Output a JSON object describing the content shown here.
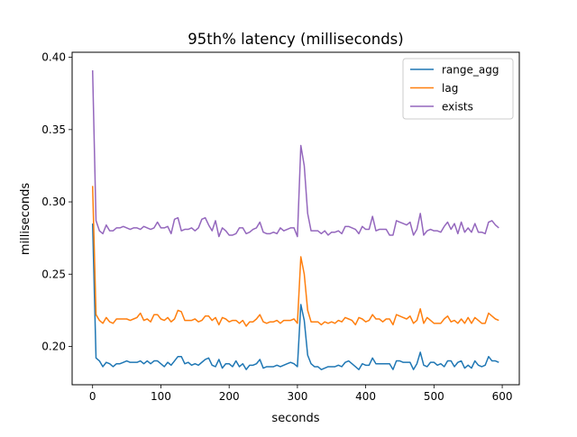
{
  "chart_data": {
    "type": "line",
    "title": "95th% latency (milliseconds)",
    "xlabel": "seconds",
    "ylabel": "milliseconds",
    "xlim": [
      -30,
      625
    ],
    "ylim": [
      0.1735,
      0.4035
    ],
    "xticks": [
      0,
      100,
      200,
      300,
      400,
      500,
      600
    ],
    "yticks": [
      0.2,
      0.25,
      0.3,
      0.35,
      0.4
    ],
    "legend_position": "upper right",
    "grid": false,
    "x": [
      0,
      5,
      10,
      15,
      20,
      25,
      30,
      35,
      40,
      45,
      50,
      55,
      60,
      65,
      70,
      75,
      80,
      85,
      90,
      95,
      100,
      105,
      110,
      115,
      120,
      125,
      130,
      135,
      140,
      145,
      150,
      155,
      160,
      165,
      170,
      175,
      180,
      185,
      190,
      195,
      200,
      205,
      210,
      215,
      220,
      225,
      230,
      235,
      240,
      245,
      250,
      255,
      260,
      265,
      270,
      275,
      280,
      285,
      290,
      295,
      300,
      305,
      310,
      315,
      320,
      325,
      330,
      335,
      340,
      345,
      350,
      355,
      360,
      365,
      370,
      375,
      380,
      385,
      390,
      395,
      400,
      405,
      410,
      415,
      420,
      425,
      430,
      435,
      440,
      445,
      450,
      455,
      460,
      465,
      470,
      475,
      480,
      485,
      490,
      495,
      500,
      505,
      510,
      515,
      520,
      525,
      530,
      535,
      540,
      545,
      550,
      555,
      560,
      565,
      570,
      575,
      580,
      585,
      590,
      595
    ],
    "series": [
      {
        "name": "range_agg",
        "color": "#1f77b4",
        "values": [
          0.285,
          0.192,
          0.19,
          0.186,
          0.189,
          0.188,
          0.186,
          0.188,
          0.188,
          0.189,
          0.19,
          0.189,
          0.189,
          0.189,
          0.19,
          0.188,
          0.19,
          0.188,
          0.19,
          0.19,
          0.188,
          0.186,
          0.189,
          0.187,
          0.19,
          0.193,
          0.193,
          0.188,
          0.189,
          0.187,
          0.188,
          0.187,
          0.189,
          0.191,
          0.192,
          0.187,
          0.186,
          0.191,
          0.185,
          0.188,
          0.188,
          0.186,
          0.19,
          0.186,
          0.188,
          0.184,
          0.187,
          0.187,
          0.188,
          0.191,
          0.185,
          0.186,
          0.186,
          0.186,
          0.187,
          0.186,
          0.187,
          0.188,
          0.189,
          0.188,
          0.186,
          0.229,
          0.218,
          0.194,
          0.188,
          0.186,
          0.186,
          0.184,
          0.185,
          0.186,
          0.186,
          0.186,
          0.187,
          0.186,
          0.189,
          0.19,
          0.188,
          0.186,
          0.184,
          0.188,
          0.187,
          0.187,
          0.192,
          0.188,
          0.188,
          0.188,
          0.188,
          0.188,
          0.184,
          0.19,
          0.19,
          0.189,
          0.189,
          0.189,
          0.184,
          0.188,
          0.196,
          0.187,
          0.186,
          0.189,
          0.189,
          0.187,
          0.188,
          0.186,
          0.19,
          0.19,
          0.186,
          0.189,
          0.19,
          0.185,
          0.187,
          0.185,
          0.19,
          0.187,
          0.186,
          0.187,
          0.193,
          0.19,
          0.19,
          0.189
        ]
      },
      {
        "name": "lag",
        "color": "#ff7f0e",
        "values": [
          0.311,
          0.222,
          0.218,
          0.216,
          0.22,
          0.217,
          0.216,
          0.219,
          0.219,
          0.219,
          0.219,
          0.218,
          0.219,
          0.22,
          0.223,
          0.218,
          0.219,
          0.217,
          0.222,
          0.222,
          0.219,
          0.218,
          0.22,
          0.217,
          0.219,
          0.225,
          0.224,
          0.218,
          0.218,
          0.218,
          0.219,
          0.217,
          0.218,
          0.221,
          0.221,
          0.218,
          0.22,
          0.215,
          0.22,
          0.219,
          0.217,
          0.218,
          0.218,
          0.216,
          0.218,
          0.214,
          0.217,
          0.217,
          0.219,
          0.222,
          0.217,
          0.216,
          0.217,
          0.217,
          0.218,
          0.216,
          0.218,
          0.218,
          0.218,
          0.219,
          0.216,
          0.262,
          0.25,
          0.225,
          0.217,
          0.217,
          0.217,
          0.215,
          0.217,
          0.216,
          0.217,
          0.216,
          0.218,
          0.217,
          0.22,
          0.219,
          0.218,
          0.215,
          0.22,
          0.219,
          0.217,
          0.218,
          0.222,
          0.219,
          0.219,
          0.217,
          0.219,
          0.219,
          0.215,
          0.222,
          0.221,
          0.22,
          0.219,
          0.221,
          0.216,
          0.218,
          0.226,
          0.216,
          0.22,
          0.218,
          0.216,
          0.216,
          0.216,
          0.219,
          0.221,
          0.217,
          0.218,
          0.216,
          0.219,
          0.216,
          0.22,
          0.216,
          0.22,
          0.218,
          0.216,
          0.216,
          0.223,
          0.221,
          0.219,
          0.218
        ]
      },
      {
        "name": "exists",
        "color": "#9467bd",
        "values": [
          0.391,
          0.287,
          0.28,
          0.278,
          0.284,
          0.28,
          0.28,
          0.282,
          0.282,
          0.283,
          0.282,
          0.281,
          0.282,
          0.282,
          0.281,
          0.283,
          0.282,
          0.281,
          0.282,
          0.286,
          0.282,
          0.282,
          0.283,
          0.278,
          0.288,
          0.289,
          0.28,
          0.281,
          0.281,
          0.282,
          0.28,
          0.282,
          0.288,
          0.289,
          0.284,
          0.28,
          0.287,
          0.276,
          0.282,
          0.28,
          0.277,
          0.277,
          0.278,
          0.282,
          0.282,
          0.278,
          0.279,
          0.281,
          0.282,
          0.286,
          0.279,
          0.278,
          0.278,
          0.279,
          0.278,
          0.282,
          0.28,
          0.281,
          0.282,
          0.282,
          0.276,
          0.339,
          0.325,
          0.292,
          0.28,
          0.28,
          0.28,
          0.278,
          0.28,
          0.277,
          0.279,
          0.279,
          0.28,
          0.278,
          0.283,
          0.283,
          0.282,
          0.281,
          0.278,
          0.283,
          0.281,
          0.281,
          0.29,
          0.28,
          0.281,
          0.281,
          0.281,
          0.277,
          0.277,
          0.287,
          0.286,
          0.285,
          0.284,
          0.286,
          0.277,
          0.281,
          0.292,
          0.277,
          0.28,
          0.281,
          0.28,
          0.28,
          0.279,
          0.283,
          0.286,
          0.281,
          0.285,
          0.278,
          0.286,
          0.279,
          0.282,
          0.279,
          0.285,
          0.279,
          0.279,
          0.278,
          0.286,
          0.287,
          0.284,
          0.282
        ]
      }
    ]
  }
}
